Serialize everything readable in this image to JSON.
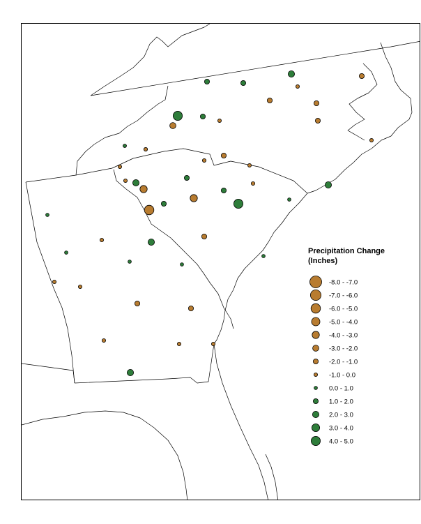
{
  "legend": {
    "title_line1": "Precipitation Change",
    "title_line2": "(Inches)",
    "classes": [
      {
        "label": "-8.0 - -7.0",
        "color": "#b87c30"
      },
      {
        "label": "-7.0 - -6.0",
        "color": "#b87c30"
      },
      {
        "label": "-6.0 - -5.0",
        "color": "#b87c30"
      },
      {
        "label": "-5.0 - -4.0",
        "color": "#b87c30"
      },
      {
        "label": "-4.0 - -3.0",
        "color": "#b87c30"
      },
      {
        "label": "-3.0 - -2.0",
        "color": "#b87c30"
      },
      {
        "label": "-2.0 - -1.0",
        "color": "#b87c30"
      },
      {
        "label": "-1.0 - 0.0",
        "color": "#b87c30"
      },
      {
        "label": "0.0 - 1.0",
        "color": "#2e7d3a"
      },
      {
        "label": "1.0 - 2.0",
        "color": "#2e7d3a"
      },
      {
        "label": "2.0 - 3.0",
        "color": "#2e7d3a"
      },
      {
        "label": "3.0 - 4.0",
        "color": "#2e7d3a"
      },
      {
        "label": "4.0 - 5.0",
        "color": "#2e7d3a"
      }
    ]
  },
  "colors": {
    "negative": "#b87c30",
    "positive": "#2e7d3a",
    "outline": "#000000",
    "boundary": "#000000"
  },
  "stations": [
    {
      "class": 9,
      "color": "positive"
    },
    {
      "class": 10,
      "color": "positive"
    },
    {
      "class": 9,
      "color": "positive"
    },
    {
      "class": 7,
      "color": "negative"
    },
    {
      "class": 6,
      "color": "negative"
    },
    {
      "class": 6,
      "color": "negative"
    },
    {
      "class": 6,
      "color": "negative"
    },
    {
      "class": 12,
      "color": "positive"
    },
    {
      "class": 9,
      "color": "positive"
    },
    {
      "class": 5,
      "color": "negative"
    },
    {
      "class": 7,
      "color": "negative"
    },
    {
      "class": 7,
      "color": "negative"
    },
    {
      "class": 8,
      "color": "positive"
    },
    {
      "class": 6,
      "color": "negative"
    },
    {
      "class": 7,
      "color": "negative"
    },
    {
      "class": 7,
      "color": "negative"
    },
    {
      "class": 8,
      "color": "positive"
    },
    {
      "class": 7,
      "color": "negative"
    },
    {
      "class": 2,
      "color": "negative"
    },
    {
      "class": 4,
      "color": "negative"
    },
    {
      "class": 10,
      "color": "positive"
    },
    {
      "class": 4,
      "color": "negative"
    },
    {
      "class": 9,
      "color": "positive"
    },
    {
      "class": 7,
      "color": "negative"
    },
    {
      "class": 9,
      "color": "positive"
    },
    {
      "class": 6,
      "color": "negative"
    },
    {
      "class": 12,
      "color": "positive"
    },
    {
      "class": 9,
      "color": "positive"
    },
    {
      "class": 8,
      "color": "positive"
    },
    {
      "class": 8,
      "color": "positive"
    },
    {
      "class": 7,
      "color": "negative"
    },
    {
      "class": 8,
      "color": "positive"
    },
    {
      "class": 8,
      "color": "positive"
    },
    {
      "class": 8,
      "color": "positive"
    },
    {
      "class": 7,
      "color": "negative"
    },
    {
      "class": 10,
      "color": "positive"
    },
    {
      "class": 7,
      "color": "negative"
    },
    {
      "class": 6,
      "color": "negative"
    },
    {
      "class": 6,
      "color": "negative"
    },
    {
      "class": 7,
      "color": "negative"
    },
    {
      "class": 7,
      "color": "negative"
    },
    {
      "class": 7,
      "color": "negative"
    },
    {
      "class": 10,
      "color": "positive"
    },
    {
      "class": 10,
      "color": "positive"
    },
    {
      "class": 6,
      "color": "negative"
    },
    {
      "class": 7,
      "color": "negative"
    },
    {
      "class": 8,
      "color": "positive"
    },
    {
      "class": 8,
      "color": "positive"
    },
    {
      "class": 7,
      "color": "negative"
    },
    {
      "class": 7,
      "color": "negative"
    }
  ]
}
